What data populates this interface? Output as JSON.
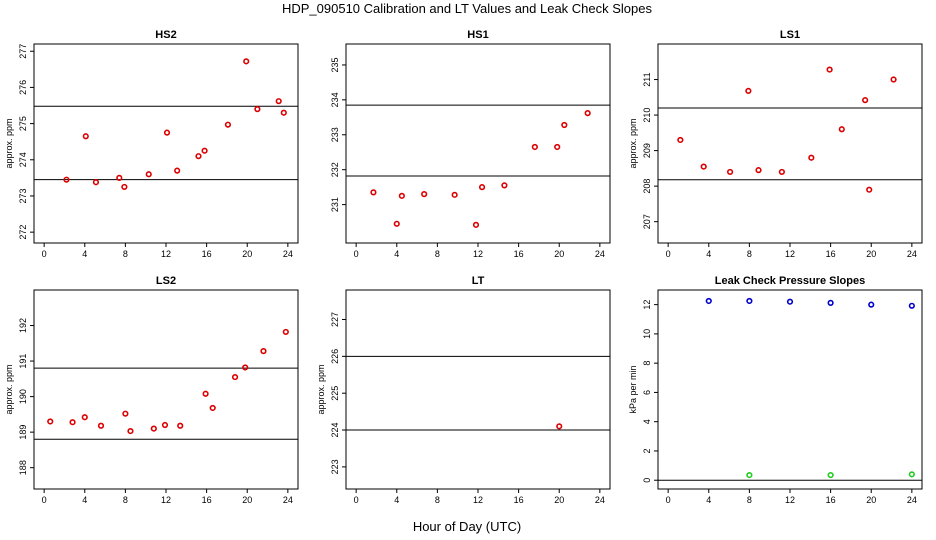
{
  "figure": {
    "title": "HDP_090510  Calibration and LT Values and Leak Check Slopes",
    "xlabel": "Hour of Day (UTC)"
  },
  "chart_data": [
    {
      "type": "scatter",
      "title": "HS2",
      "ylabel": "approx. ppm",
      "xlim": [
        -1,
        25
      ],
      "ylim": [
        271.7,
        277.2
      ],
      "xticks": [
        0,
        4,
        8,
        12,
        16,
        20,
        24
      ],
      "yticks": [
        272,
        273,
        274,
        275,
        276,
        277
      ],
      "hlines": [
        273.45,
        275.48
      ],
      "grid": false,
      "series": [
        {
          "color": "#dd0000",
          "x": [
            2.2,
            4.1,
            5.1,
            7.4,
            7.9,
            10.3,
            12.1,
            13.1,
            15.2,
            15.8,
            18.1,
            19.9,
            21.0,
            23.1,
            23.6
          ],
          "y": [
            273.45,
            274.65,
            273.38,
            273.5,
            273.25,
            273.6,
            274.75,
            273.7,
            274.1,
            274.25,
            274.97,
            276.72,
            275.4,
            275.62,
            275.3
          ]
        }
      ]
    },
    {
      "type": "scatter",
      "title": "HS1",
      "ylabel": "",
      "xlim": [
        -1,
        25
      ],
      "ylim": [
        229.9,
        235.6
      ],
      "xticks": [
        0,
        4,
        8,
        12,
        16,
        20,
        24
      ],
      "yticks": [
        231,
        232,
        233,
        234,
        235
      ],
      "hlines": [
        231.82,
        233.85
      ],
      "grid": false,
      "series": [
        {
          "color": "#dd0000",
          "x": [
            1.7,
            4.0,
            4.5,
            6.7,
            9.7,
            11.8,
            12.4,
            14.6,
            17.6,
            19.8,
            20.5,
            22.8
          ],
          "y": [
            231.35,
            230.45,
            231.25,
            231.3,
            231.28,
            230.42,
            231.5,
            231.55,
            232.65,
            232.65,
            233.28,
            233.62
          ]
        }
      ]
    },
    {
      "type": "scatter",
      "title": "LS1",
      "ylabel": "approx. ppm",
      "xlim": [
        -1,
        25
      ],
      "ylim": [
        206.4,
        212.0
      ],
      "xticks": [
        0,
        4,
        8,
        12,
        16,
        20,
        24
      ],
      "yticks": [
        207,
        208,
        209,
        210,
        211
      ],
      "hlines": [
        208.18,
        210.2
      ],
      "grid": false,
      "series": [
        {
          "color": "#dd0000",
          "x": [
            1.2,
            3.5,
            6.1,
            7.9,
            8.9,
            11.2,
            14.1,
            15.9,
            17.1,
            19.4,
            19.8,
            22.2
          ],
          "y": [
            209.3,
            208.55,
            208.4,
            210.68,
            208.45,
            208.4,
            208.8,
            211.28,
            209.6,
            210.42,
            207.9,
            211.0
          ]
        }
      ]
    },
    {
      "type": "scatter",
      "title": "LS2",
      "ylabel": "approx. ppm",
      "xlim": [
        -1,
        25
      ],
      "ylim": [
        187.4,
        193.0
      ],
      "xticks": [
        0,
        4,
        8,
        12,
        16,
        20,
        24
      ],
      "yticks": [
        188,
        189,
        190,
        191,
        192
      ],
      "hlines": [
        188.8,
        190.8
      ],
      "grid": false,
      "series": [
        {
          "color": "#dd0000",
          "x": [
            0.6,
            2.8,
            4.0,
            5.6,
            8.0,
            8.5,
            10.8,
            11.9,
            13.4,
            15.9,
            16.6,
            18.8,
            19.8,
            21.6,
            23.8
          ],
          "y": [
            189.3,
            189.28,
            189.42,
            189.18,
            189.52,
            189.03,
            189.1,
            189.2,
            189.18,
            190.08,
            189.68,
            190.55,
            190.82,
            191.28,
            191.82
          ]
        }
      ]
    },
    {
      "type": "scatter",
      "title": "LT",
      "ylabel": "approx. ppm",
      "xlim": [
        -1,
        25
      ],
      "ylim": [
        222.4,
        227.8
      ],
      "xticks": [
        0,
        4,
        8,
        12,
        16,
        20,
        24
      ],
      "yticks": [
        223,
        224,
        225,
        226,
        227
      ],
      "hlines": [
        224.0,
        226.0
      ],
      "grid": false,
      "series": [
        {
          "color": "#dd0000",
          "x": [
            20.0
          ],
          "y": [
            224.1
          ]
        }
      ]
    },
    {
      "type": "scatter",
      "title": "Leak Check Pressure Slopes",
      "ylabel": "kPa per min",
      "xlim": [
        -1,
        25
      ],
      "ylim": [
        -0.6,
        13.0
      ],
      "xticks": [
        0,
        4,
        8,
        12,
        16,
        20,
        24
      ],
      "yticks": [
        0,
        2,
        4,
        6,
        8,
        10,
        12
      ],
      "hlines": [
        0
      ],
      "grid": false,
      "series": [
        {
          "color": "#0000cc",
          "x": [
            4,
            8,
            12,
            16,
            20,
            24
          ],
          "y": [
            12.25,
            12.25,
            12.2,
            12.12,
            12.0,
            11.92
          ]
        },
        {
          "color": "#22cc22",
          "x": [
            8,
            16,
            24
          ],
          "y": [
            0.35,
            0.35,
            0.4
          ]
        }
      ]
    }
  ]
}
